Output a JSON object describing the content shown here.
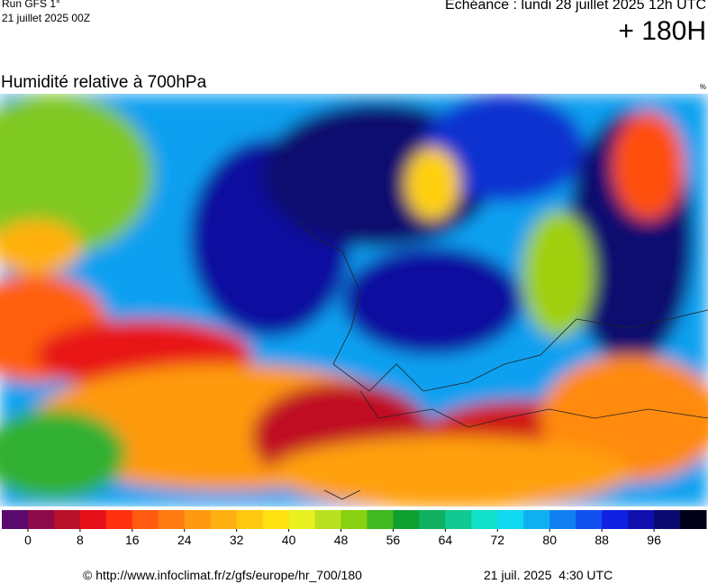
{
  "header": {
    "run": "Run GFS 1°",
    "run_date": "21 juillet 2025 00Z",
    "valid_time": "Echéance : lundi 28 juillet 2025 12h UTC",
    "lead_time": "+ 180H"
  },
  "map": {
    "title": "Humidité relative à 700hPa",
    "unit": "%"
  },
  "colorbar": {
    "range": [
      -4,
      104
    ],
    "colors": [
      "#5a0a6e",
      "#8c0a4a",
      "#b8102a",
      "#e8101a",
      "#ff3010",
      "#ff5a10",
      "#ff7a10",
      "#ff9a10",
      "#ffb010",
      "#ffc810",
      "#ffe010",
      "#e8f020",
      "#b8e020",
      "#88d010",
      "#40b820",
      "#10a030",
      "#10b060",
      "#10c890",
      "#10e0c8",
      "#10d8f0",
      "#10b0f0",
      "#1080f0",
      "#1050f0",
      "#1020e0",
      "#1010b0",
      "#0a0a70",
      "#000018"
    ],
    "ticks": [
      0,
      8,
      16,
      24,
      32,
      40,
      48,
      56,
      64,
      72,
      80,
      88,
      96
    ]
  },
  "footer": {
    "credit": "© http://www.infoclimat.fr/z/gfs/europe/hr_700/180",
    "timestamp": "21 juil. 2025  4:30 UTC"
  }
}
